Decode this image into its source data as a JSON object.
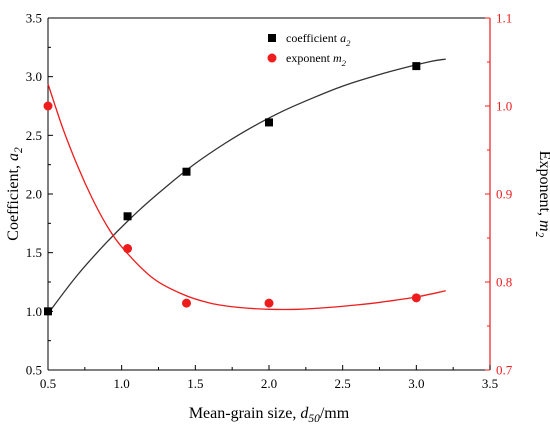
{
  "chart_data": {
    "type": "scatter",
    "xlabel": "Mean-grain size, d50/mm",
    "xlabel_parts": {
      "main": "Mean-grain size, ",
      "var": "d",
      "sub": "50",
      "unit": "/mm"
    },
    "ylabel_left": "Coefficient, a2",
    "ylabel_left_parts": {
      "main": "Coefficient, ",
      "var": "a",
      "sub": "2"
    },
    "ylabel_right": "Exponent, m2",
    "ylabel_right_parts": {
      "main": "Exponent, ",
      "var": "m",
      "sub": "2"
    },
    "xlim": [
      0.5,
      3.5
    ],
    "xticks": [
      "0.5",
      "1.0",
      "1.5",
      "2.0",
      "2.5",
      "3.0",
      "3.5"
    ],
    "ylim_left": [
      0.5,
      3.5
    ],
    "yticks_left": [
      "0.5",
      "1.0",
      "1.5",
      "2.0",
      "2.5",
      "3.0",
      "3.5"
    ],
    "ylim_right": [
      0.7,
      1.1
    ],
    "yticks_right": [
      "0.7",
      "0.8",
      "0.9",
      "1.0",
      "1.1"
    ],
    "grid": false,
    "legend_position": "top-center",
    "series": [
      {
        "name": "coefficient a2",
        "legend_parts": {
          "main": "coefficient ",
          "var": "a",
          "sub": "2"
        },
        "axis": "left",
        "marker": "square",
        "color": "#000000",
        "x": [
          0.5,
          1.04,
          1.44,
          2.0,
          3.0
        ],
        "y": [
          1.0,
          1.81,
          2.19,
          2.61,
          3.09
        ],
        "fit": {
          "x": [
            0.5,
            0.7,
            0.9,
            1.1,
            1.3,
            1.5,
            1.7,
            1.9,
            2.1,
            2.3,
            2.5,
            2.7,
            2.9,
            3.1,
            3.2
          ],
          "y": [
            0.98,
            1.31,
            1.59,
            1.84,
            2.06,
            2.26,
            2.43,
            2.58,
            2.71,
            2.82,
            2.92,
            3.0,
            3.07,
            3.13,
            3.15
          ]
        }
      },
      {
        "name": "exponent m2",
        "legend_parts": {
          "main": "exponent  ",
          "var": "m",
          "sub": "2"
        },
        "axis": "right",
        "marker": "circle",
        "color": "#ee1c1c",
        "x": [
          0.5,
          1.04,
          1.44,
          2.0,
          3.0
        ],
        "y": [
          1.0,
          0.838,
          0.776,
          0.776,
          0.782
        ],
        "fit": {
          "x": [
            0.5,
            0.6,
            0.7,
            0.8,
            0.9,
            1.0,
            1.2,
            1.4,
            1.6,
            1.8,
            2.0,
            2.2,
            2.4,
            2.6,
            2.8,
            3.0,
            3.2
          ],
          "y": [
            1.025,
            0.975,
            0.932,
            0.895,
            0.864,
            0.84,
            0.806,
            0.787,
            0.776,
            0.771,
            0.769,
            0.769,
            0.771,
            0.774,
            0.778,
            0.783,
            0.79
          ]
        }
      }
    ]
  }
}
